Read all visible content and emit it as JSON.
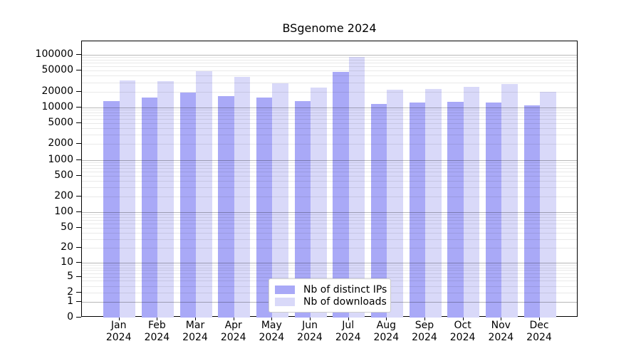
{
  "title": "BSgenome 2024",
  "chart_data": {
    "type": "bar",
    "title": "BSgenome 2024",
    "y_scale": "log10(1+x)",
    "ylim": [
      0,
      100000
    ],
    "grid": "horizontal log gridlines, minor at 2-9 per decade, major at powers of 10",
    "legend_position": "lower center inside plot",
    "y_ticks": [
      0,
      1,
      2,
      5,
      10,
      20,
      50,
      100,
      200,
      500,
      1000,
      2000,
      5000,
      10000,
      20000,
      50000,
      100000
    ],
    "categories": [
      "Jan 2024",
      "Feb 2024",
      "Mar 2024",
      "Apr 2024",
      "May 2024",
      "Jun 2024",
      "Jul 2024",
      "Aug 2024",
      "Sep 2024",
      "Oct 2024",
      "Nov 2024",
      "Dec 2024"
    ],
    "series": [
      {
        "name": "Nb of distinct IPs",
        "color": "#a9a9f7",
        "values": [
          13100,
          15200,
          19000,
          16300,
          15500,
          13200,
          47500,
          11500,
          12300,
          12600,
          12300,
          10900
        ]
      },
      {
        "name": "Nb of downloads",
        "color": "#d9d9f9",
        "values": [
          32500,
          31500,
          48700,
          37900,
          28400,
          23900,
          90500,
          21800,
          22500,
          24700,
          28300,
          19500
        ]
      }
    ]
  },
  "colors": {
    "axis": "#000000",
    "grid_major": "rgba(0,0,0,0.28)",
    "grid_minor": "rgba(0,0,0,0.085)",
    "background": "#ffffff"
  }
}
